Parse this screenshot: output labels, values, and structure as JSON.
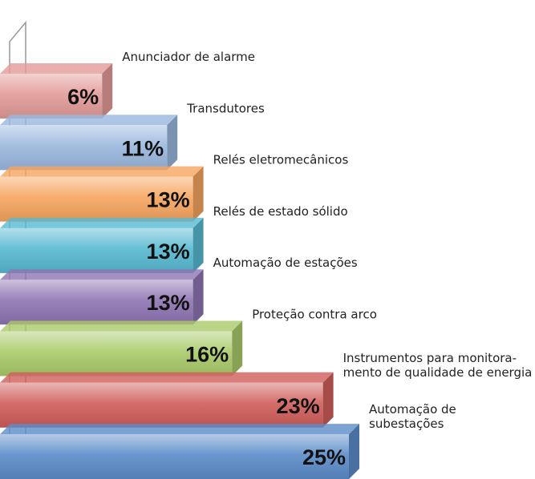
{
  "chart_data": {
    "type": "bar3d_horizontal",
    "categories": [
      "Anunciador de alarme",
      "Transdutores",
      "Relés eletromecânicos",
      "Relés de estado sólido",
      "Automação de estações",
      "Proteção contra arco",
      "Instrumentos para monitora-\nmento de qualidade de energia",
      "Automação de\nsubestações"
    ],
    "values": [
      6,
      11,
      13,
      13,
      13,
      16,
      23,
      25
    ],
    "value_labels": [
      "6%",
      "11%",
      "13%",
      "13%",
      "13%",
      "16%",
      "23%",
      "25%"
    ],
    "colors": [
      "#e29b99",
      "#9ab8de",
      "#f6a55f",
      "#56b9d1",
      "#8f74b3",
      "#aacb6a",
      "#d05e5a",
      "#5b8cc9"
    ]
  }
}
